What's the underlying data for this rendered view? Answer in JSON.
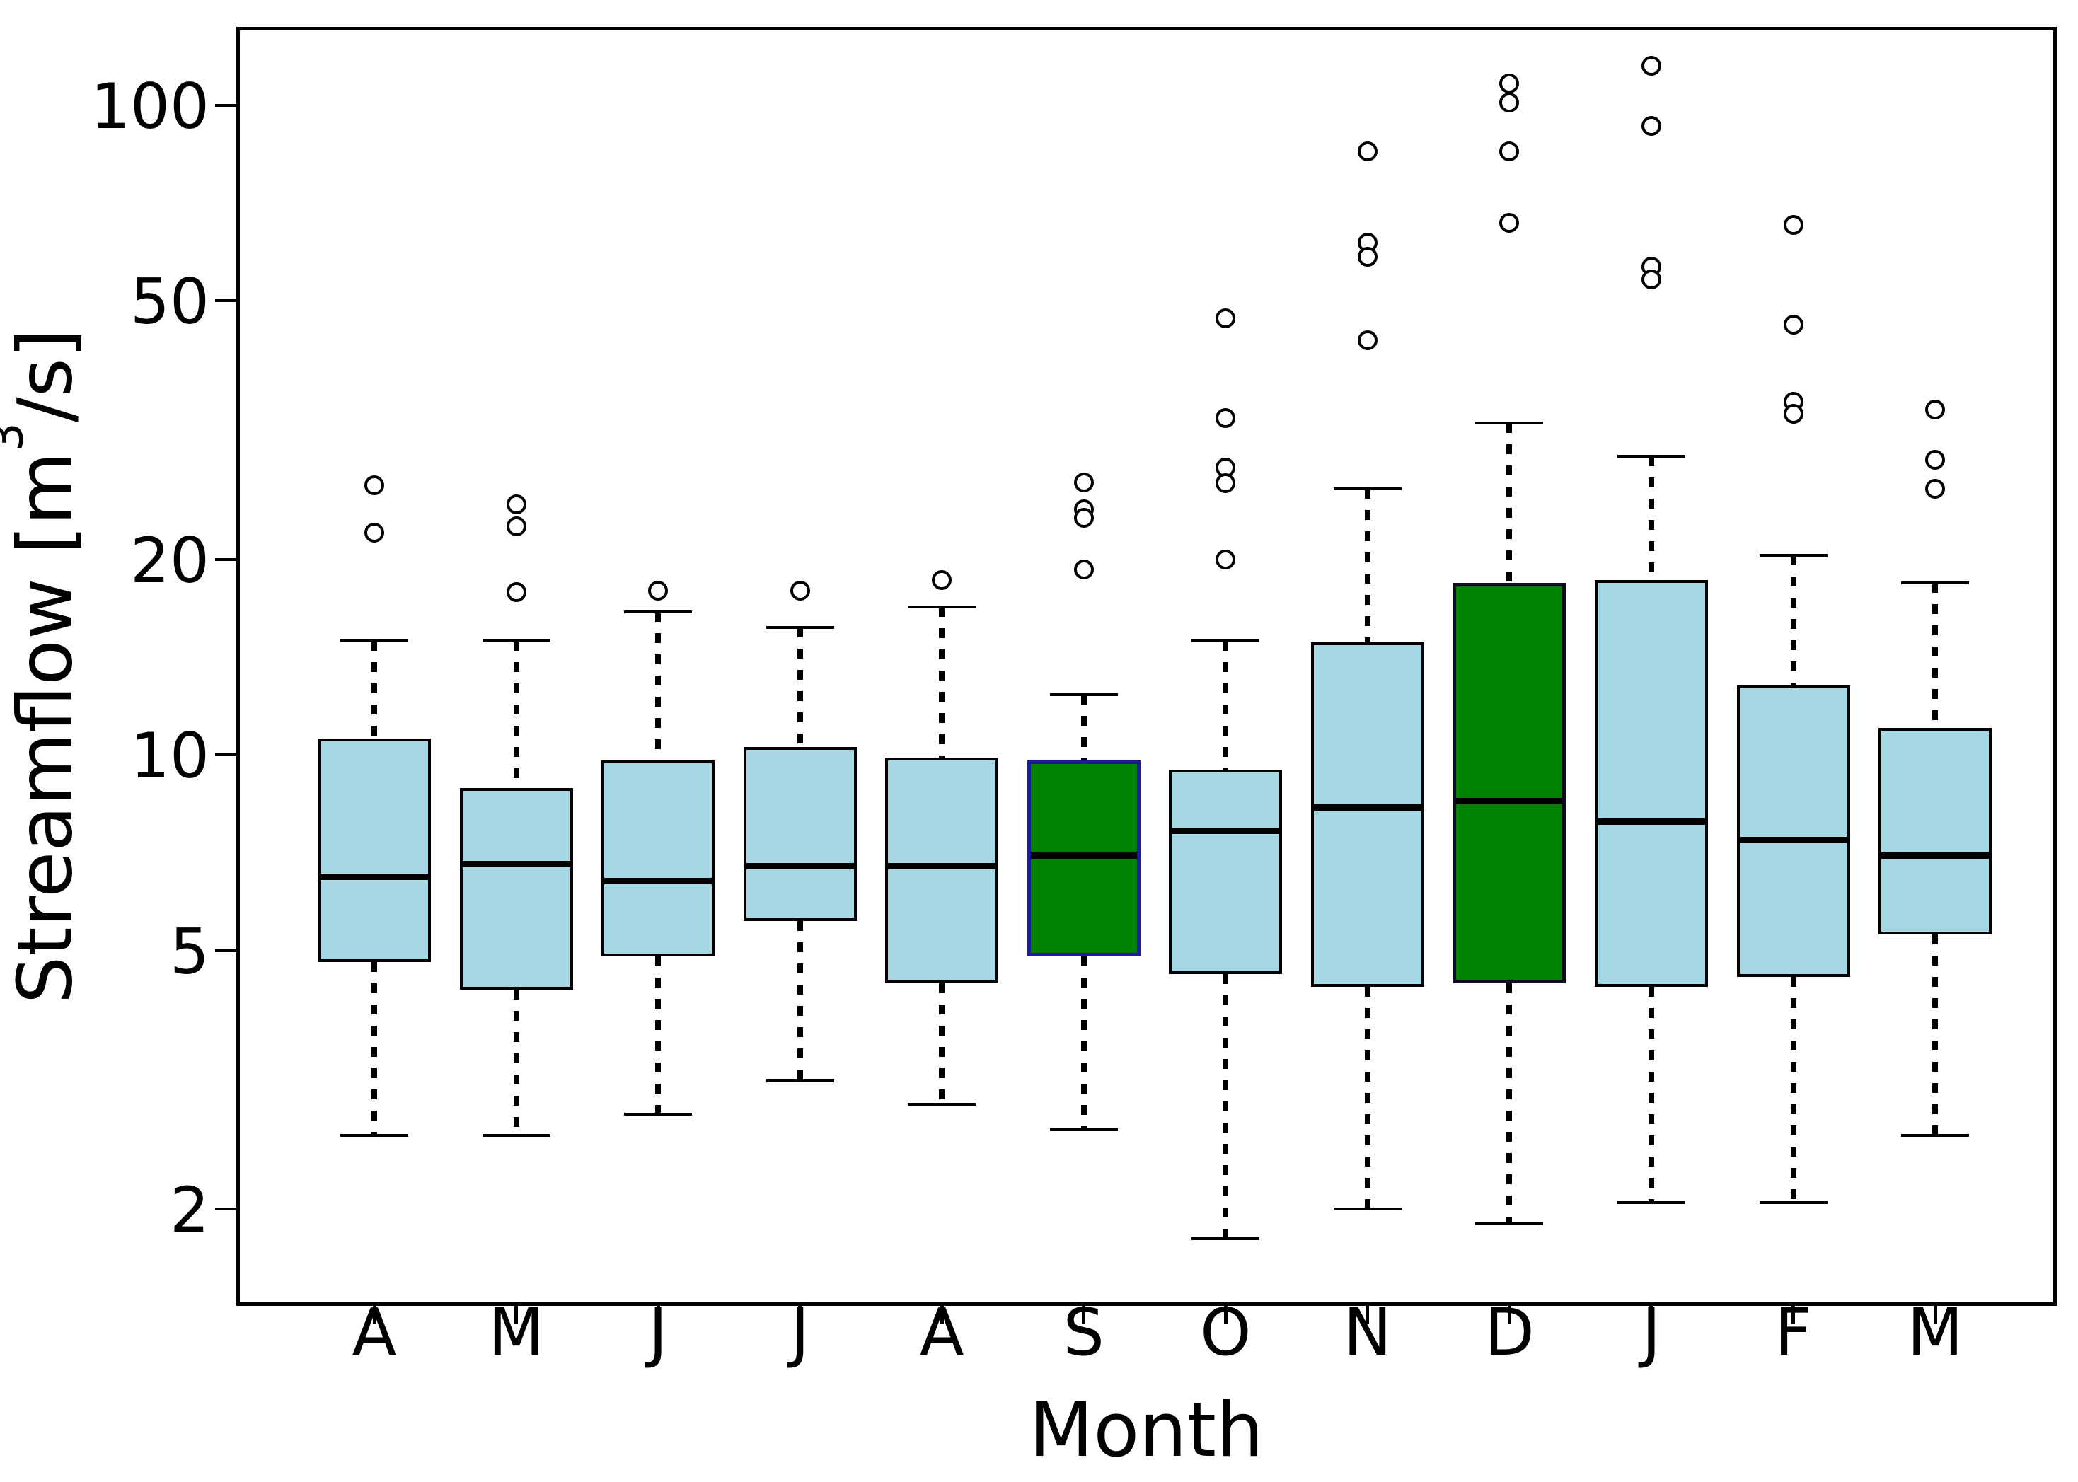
{
  "chart_data": {
    "type": "box",
    "xlabel": "Month",
    "ylabel": "Streamflow [m3/s]",
    "ylabel_parts": {
      "pre": "Streamflow [m",
      "sup": "3",
      "post": "/s]"
    },
    "y_scale": "log",
    "ylim": [
      1.42,
      132
    ],
    "y_ticks": [
      100,
      50,
      20,
      10,
      5,
      2
    ],
    "y_tick_labels": [
      "100",
      "50",
      "20",
      "10",
      "5",
      "2"
    ],
    "grid": "off",
    "legend": "none",
    "categories": [
      "A",
      "M",
      "J",
      "J",
      "A",
      "S",
      "O",
      "N",
      "D",
      "J",
      "F",
      "M"
    ],
    "colors": {
      "default_fill": "#a5d8e2",
      "default_border": "#000000",
      "highlight_fill": "#028202",
      "sep_highlight_border": "#1b1b9b",
      "dec_highlight_border": "#0d0d20",
      "median": "#000000",
      "whisker": "#000000",
      "outlier_stroke": "#000000"
    },
    "series": [
      {
        "label": "A",
        "low": 2.6,
        "q1": 4.8,
        "median": 6.5,
        "q3": 10.6,
        "high": 15.0,
        "outliers": [
          26,
          22
        ],
        "fill": "#a5d8e2",
        "border": "#000000"
      },
      {
        "label": "M",
        "low": 2.6,
        "q1": 4.35,
        "median": 6.8,
        "q3": 8.9,
        "high": 15.0,
        "outliers": [
          24.3,
          22.5,
          17.8
        ],
        "fill": "#a5d8e2",
        "border": "#000000"
      },
      {
        "label": "J",
        "low": 2.8,
        "q1": 4.9,
        "median": 6.4,
        "q3": 9.8,
        "high": 16.6,
        "outliers": [
          17.9
        ],
        "fill": "#a5d8e2",
        "border": "#000000"
      },
      {
        "label": "J",
        "low": 3.15,
        "q1": 5.55,
        "median": 6.75,
        "q3": 10.3,
        "high": 15.7,
        "outliers": [
          17.9
        ],
        "fill": "#a5d8e2",
        "border": "#000000"
      },
      {
        "label": "A",
        "low": 2.9,
        "q1": 4.45,
        "median": 6.75,
        "q3": 9.9,
        "high": 16.9,
        "outliers": [
          18.6
        ],
        "fill": "#a5d8e2",
        "border": "#000000"
      },
      {
        "label": "S",
        "low": 2.65,
        "q1": 4.9,
        "median": 7.0,
        "q3": 9.8,
        "high": 12.4,
        "outliers": [
          26.3,
          23.9,
          23.2,
          19.3
        ],
        "fill": "#028202",
        "border": "#1b1b9b"
      },
      {
        "label": "O",
        "low": 1.8,
        "q1": 4.6,
        "median": 7.65,
        "q3": 9.5,
        "high": 15.0,
        "outliers": [
          47,
          33,
          27.7,
          26.2,
          20
        ],
        "fill": "#a5d8e2",
        "border": "#000000"
      },
      {
        "label": "N",
        "low": 2.0,
        "q1": 4.4,
        "median": 8.3,
        "q3": 14.9,
        "high": 25.7,
        "outliers": [
          85,
          61.5,
          58.5,
          43.5
        ],
        "fill": "#a5d8e2",
        "border": "#000000"
      },
      {
        "label": "D",
        "low": 1.9,
        "q1": 4.45,
        "median": 8.5,
        "q3": 18.4,
        "high": 32.4,
        "outliers": [
          108,
          101,
          85,
          66
        ],
        "fill": "#028202",
        "border": "#0d0d20"
      },
      {
        "label": "J",
        "low": 2.05,
        "q1": 4.4,
        "median": 7.9,
        "q3": 18.6,
        "high": 28.8,
        "outliers": [
          115,
          93,
          56.5,
          54
        ],
        "fill": "#a5d8e2",
        "border": "#000000"
      },
      {
        "label": "F",
        "low": 2.05,
        "q1": 4.55,
        "median": 7.4,
        "q3": 12.8,
        "high": 20.3,
        "outliers": [
          65.5,
          46,
          35,
          33.5
        ],
        "fill": "#a5d8e2",
        "border": "#000000"
      },
      {
        "label": "M",
        "low": 2.6,
        "q1": 5.3,
        "median": 7.0,
        "q3": 11.0,
        "high": 18.4,
        "outliers": [
          34,
          28.5,
          25.7
        ],
        "fill": "#a5d8e2",
        "border": "#000000"
      }
    ]
  }
}
